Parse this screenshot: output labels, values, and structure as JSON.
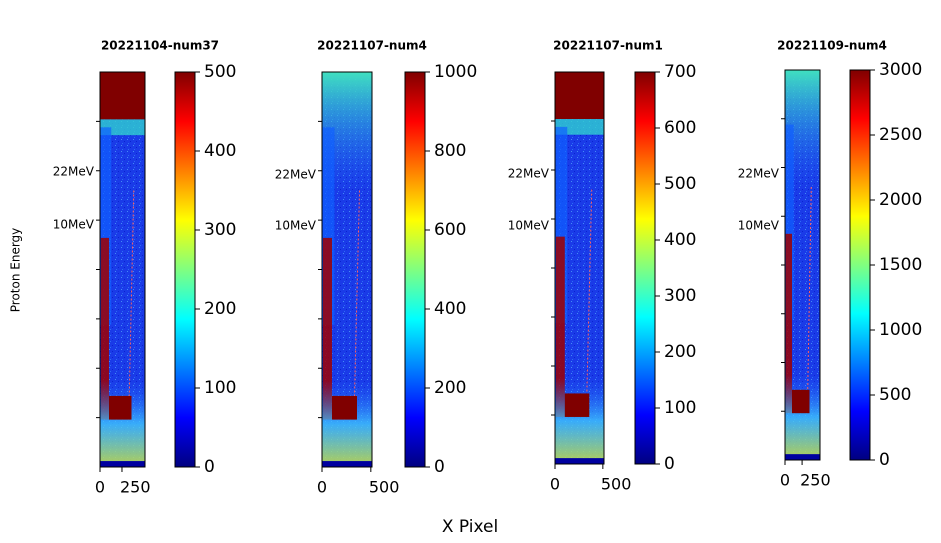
{
  "chart_data": [
    {
      "type": "image",
      "title": "20221104-num37",
      "xlim": [
        0,
        512
      ],
      "xticks": [
        0,
        250
      ],
      "clim": [
        0,
        500
      ],
      "cticks": [
        0,
        100,
        200,
        300,
        400,
        500
      ],
      "annotations": [
        "22MeV",
        "10MeV"
      ],
      "colormap": "jet"
    },
    {
      "type": "image",
      "title": "20221107-num4",
      "xlim": [
        0,
        512
      ],
      "xticks": [
        0,
        500
      ],
      "clim": [
        0,
        1000
      ],
      "cticks": [
        0,
        200,
        400,
        600,
        800,
        1000
      ],
      "annotations": [
        "22MeV",
        "10MeV"
      ],
      "colormap": "jet"
    },
    {
      "type": "image",
      "title": "20221107-num1",
      "xlim": [
        0,
        512
      ],
      "xticks": [
        0,
        500
      ],
      "clim": [
        0,
        700
      ],
      "cticks": [
        0,
        100,
        200,
        300,
        400,
        500,
        600,
        700
      ],
      "annotations": [
        "22MeV",
        "10MeV"
      ],
      "colormap": "jet"
    },
    {
      "type": "image",
      "title": "20221109-num4",
      "xlim": [
        0,
        512
      ],
      "xticks": [
        0,
        250
      ],
      "clim": [
        0,
        3000
      ],
      "cticks": [
        0,
        500,
        1000,
        1500,
        2000,
        2500,
        3000
      ],
      "annotations": [
        "22MeV",
        "10MeV"
      ],
      "colormap": "jet"
    }
  ],
  "figure": {
    "xlabel": "X Pixel",
    "ylabel": "Proton Energy"
  }
}
